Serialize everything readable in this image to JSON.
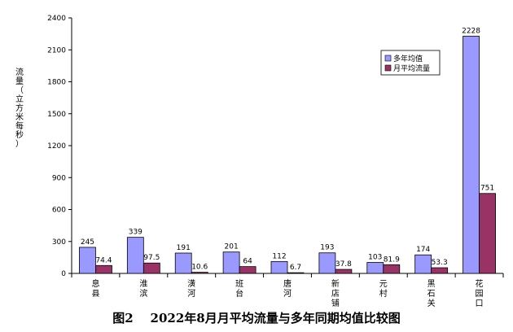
{
  "caption": "图2    2022年8月月平均流量与多年同期均值比较图",
  "chart_data": {
    "type": "bar",
    "title": "",
    "ylabel": "流量（立方米每秒）",
    "ylim": [
      0,
      2400
    ],
    "yticks": [
      0,
      300,
      600,
      900,
      1200,
      1500,
      1800,
      2100,
      2400
    ],
    "categories": [
      "息县",
      "淮滨",
      "潢河",
      "班台",
      "唐河",
      "新店铺",
      "元村",
      "黑石关",
      "花园口"
    ],
    "series": [
      {
        "name": "多年均值",
        "color": "#9999ff",
        "values": [
          245,
          339,
          191,
          201,
          112,
          193,
          103,
          174,
          2228
        ],
        "labels": [
          "245",
          "339",
          "191",
          "201",
          "112",
          "193",
          "103",
          "174",
          "2228"
        ]
      },
      {
        "name": "月平均流量",
        "color": "#993366",
        "values": [
          74.4,
          97.5,
          10.6,
          64,
          6.7,
          37.8,
          81.9,
          53.3,
          751
        ],
        "labels": [
          "74.4",
          "97.5",
          "10.6",
          "64",
          "6.7",
          "37.8",
          "81.9",
          "53.3",
          "751"
        ]
      }
    ],
    "legend": "top-right",
    "grid": false
  }
}
